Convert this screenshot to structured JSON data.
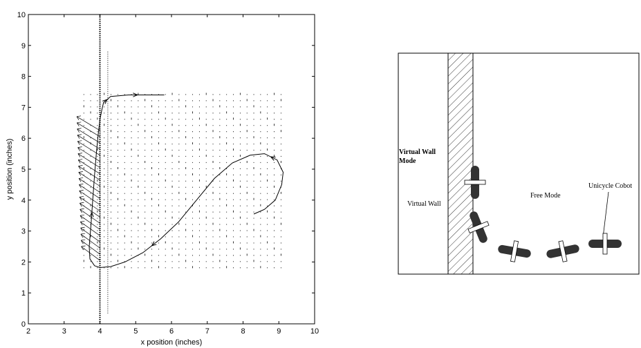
{
  "plot": {
    "xlabel": "x position (inches)",
    "ylabel": "y position (inches)"
  },
  "diagram": {
    "mode_label_line1": "Virtual Wall",
    "mode_label_line2": "Mode",
    "wall_label": "Virtual Wall",
    "free_mode_label": "Free Mode",
    "cobot_label": "Unicycle Cobot"
  },
  "chart_data": {
    "type": "line",
    "title": "",
    "xlabel": "x position (inches)",
    "ylabel": "y position (inches)",
    "xlim": [
      2,
      10
    ],
    "ylim": [
      0,
      10
    ],
    "xticks": [
      2,
      3,
      4,
      5,
      6,
      7,
      8,
      9,
      10
    ],
    "yticks": [
      0,
      1,
      2,
      3,
      4,
      5,
      6,
      7,
      8,
      9,
      10
    ],
    "grid": false,
    "virtual_wall_x": 4.0,
    "reference_line_x": 4.22,
    "series": [
      {
        "x": [
          8.3,
          8.6,
          8.9,
          9.08,
          9.12,
          8.95,
          8.6,
          8.2,
          7.7,
          7.2,
          6.7,
          6.2,
          5.7,
          5.2,
          4.7,
          4.3,
          4.0,
          3.85,
          3.72,
          3.7,
          3.75,
          3.8,
          3.85,
          3.9,
          3.95,
          4.0,
          4.05,
          4.1,
          4.3,
          4.8,
          5.3,
          5.8
        ],
        "y": [
          3.55,
          3.7,
          4.0,
          4.5,
          4.9,
          5.3,
          5.5,
          5.45,
          5.2,
          4.7,
          4.0,
          3.3,
          2.75,
          2.3,
          2.0,
          1.85,
          1.82,
          1.88,
          2.1,
          2.5,
          3.2,
          4.0,
          4.8,
          5.5,
          6.1,
          6.6,
          6.9,
          7.15,
          7.35,
          7.4,
          7.4,
          7.4
        ]
      }
    ]
  }
}
